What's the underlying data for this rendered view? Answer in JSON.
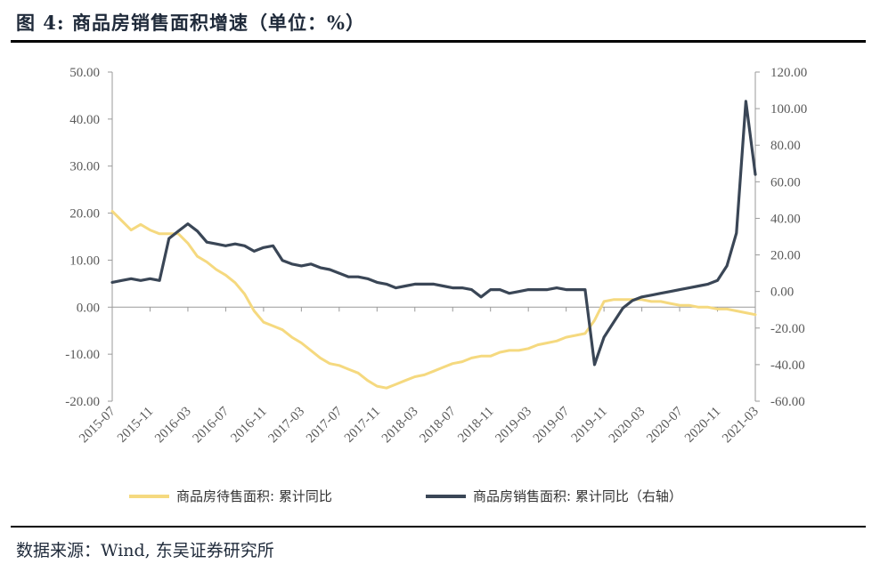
{
  "figure_title": "图 4:  商品房销售面积增速（单位：%）",
  "source": "数据来源：Wind, 东吴证券研究所",
  "colors": {
    "yellow": "#f5d97f",
    "navy": "#3a4656",
    "axis": "#9a9a9a"
  },
  "chart_data": {
    "type": "line",
    "title": "",
    "x_tick_labels": [
      "2015-07",
      "2015-11",
      "2016-03",
      "2016-07",
      "2016-11",
      "2017-03",
      "2017-07",
      "2017-11",
      "2018-03",
      "2018-07",
      "2018-11",
      "2019-03",
      "2019-07",
      "2019-11",
      "2020-03",
      "2020-07",
      "2020-11",
      "2021-03"
    ],
    "left_axis": {
      "ylim": [
        -20,
        50
      ],
      "ticks": [
        "50.00",
        "40.00",
        "30.00",
        "20.00",
        "10.00",
        "0.00",
        "-10.00",
        "-20.00"
      ]
    },
    "right_axis": {
      "ylim": [
        -60,
        120
      ],
      "ticks": [
        "120.00",
        "100.00",
        "80.00",
        "60.00",
        "40.00",
        "20.00",
        "0.00",
        "-20.00",
        "-40.00",
        "-60.00"
      ]
    },
    "legend_position": "bottom",
    "series": [
      {
        "name": "商品房待售面积: 累计同比",
        "axis": "left",
        "color": "#f5d97f",
        "x": [
          0,
          1,
          2,
          3,
          4,
          5,
          6,
          7,
          8,
          9,
          10,
          11,
          12,
          13,
          14,
          15,
          16,
          17,
          18,
          19,
          20,
          21,
          22,
          23,
          24,
          25,
          26,
          27,
          28,
          29,
          30,
          31,
          32,
          33,
          34,
          35,
          36,
          37,
          38,
          39,
          40,
          41,
          42,
          43,
          44,
          45,
          46,
          47,
          48,
          49,
          50,
          51,
          52,
          53,
          54,
          55,
          56,
          57,
          58,
          59,
          60,
          61,
          62,
          63,
          64,
          65,
          66,
          67,
          68
        ],
        "values": [
          20.4,
          18.4,
          16.4,
          17.6,
          16.4,
          15.6,
          15.6,
          15.6,
          13.6,
          10.8,
          9.6,
          8.0,
          6.8,
          5.2,
          2.8,
          -0.8,
          -3.2,
          -4.0,
          -4.8,
          -6.4,
          -7.6,
          -9.2,
          -10.8,
          -12.0,
          -12.4,
          -13.2,
          -14.0,
          -15.6,
          -16.8,
          -17.2,
          -16.4,
          -15.6,
          -14.8,
          -14.4,
          -13.6,
          -12.8,
          -12.0,
          -11.6,
          -10.8,
          -10.4,
          -10.4,
          -9.6,
          -9.2,
          -9.2,
          -8.8,
          -8.0,
          -7.6,
          -7.2,
          -6.4,
          -6.0,
          -5.6,
          -2.8,
          1.2,
          1.6,
          1.6,
          1.6,
          1.6,
          1.2,
          1.2,
          0.8,
          0.4,
          0.4,
          0.0,
          0.0,
          -0.4,
          -0.4,
          -0.8,
          -1.2,
          -1.6
        ]
      },
      {
        "name": "商品房销售面积: 累计同比（右轴）",
        "axis": "right",
        "color": "#3a4656",
        "x": [
          0,
          1,
          2,
          3,
          4,
          5,
          6,
          7,
          8,
          9,
          10,
          11,
          12,
          13,
          14,
          15,
          16,
          17,
          18,
          19,
          20,
          21,
          22,
          23,
          24,
          25,
          26,
          27,
          28,
          29,
          30,
          31,
          32,
          33,
          34,
          35,
          36,
          37,
          38,
          39,
          40,
          41,
          42,
          43,
          44,
          45,
          46,
          47,
          48,
          49,
          50,
          51,
          52,
          53,
          54,
          55,
          56,
          57,
          58,
          59,
          60,
          61,
          62,
          63,
          64,
          65,
          66,
          67,
          68
        ],
        "values": [
          5,
          6,
          7,
          6,
          7,
          6,
          29,
          33,
          37,
          33,
          27,
          26,
          25,
          26,
          25,
          22,
          24,
          25,
          17,
          15,
          14,
          15,
          13,
          12,
          10,
          8,
          8,
          7,
          5,
          4,
          2,
          3,
          4,
          4,
          4,
          3,
          2,
          2,
          1,
          -3,
          1,
          1,
          -1,
          0,
          1,
          1,
          1,
          2,
          1,
          1,
          1,
          -40,
          -25,
          -17,
          -9,
          -5,
          -3,
          -2,
          -1,
          0,
          1,
          2,
          3,
          4,
          6,
          14,
          32,
          104,
          64
        ]
      }
    ]
  }
}
